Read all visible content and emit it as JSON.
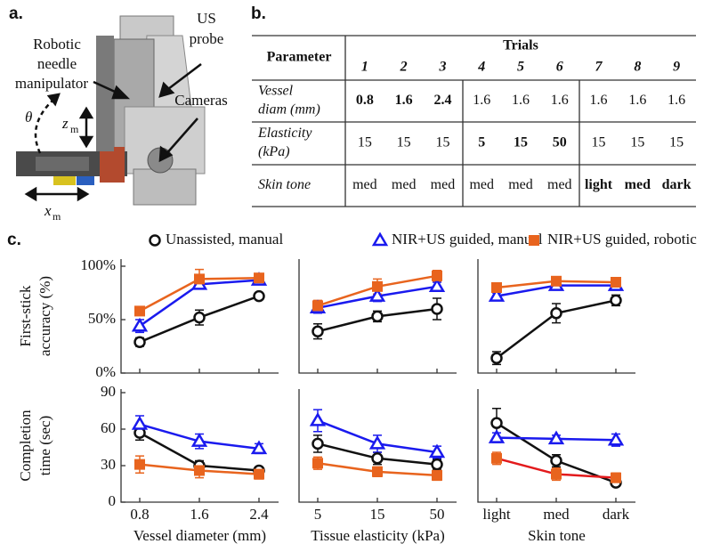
{
  "panel_a": {
    "label": "a.",
    "manipulator": [
      "Robotic",
      "needle",
      "manipulator"
    ],
    "probe": [
      "US",
      "probe"
    ],
    "cameras": "Cameras",
    "theta": "θ",
    "z": "z",
    "z_sub": "m",
    "x": "x",
    "x_sub": "m"
  },
  "panel_b": {
    "label": "b.",
    "table": {
      "header": "Parameter",
      "trials_label": "Trials",
      "columns": [
        "1",
        "2",
        "3",
        "4",
        "5",
        "6",
        "7",
        "8",
        "9"
      ],
      "rows": [
        {
          "label": [
            "Vessel",
            "diam (mm)"
          ],
          "cells": [
            0.8,
            1.6,
            2.4,
            1.6,
            1.6,
            1.6,
            1.6,
            1.6,
            1.6
          ],
          "highlight": [
            0,
            1,
            2
          ]
        },
        {
          "label": [
            "Elasticity",
            "(kPa)"
          ],
          "cells": [
            15,
            15,
            15,
            5,
            15,
            50,
            15,
            15,
            15
          ],
          "highlight": [
            3,
            4,
            5
          ]
        },
        {
          "label": [
            "Skin tone"
          ],
          "cells": [
            "med",
            "med",
            "med",
            "med",
            "med",
            "med",
            "light",
            "med",
            "dark"
          ],
          "highlight": [
            6,
            7,
            8
          ]
        }
      ],
      "highlight_color": "#1a1adb"
    }
  },
  "panel_c": {
    "label": "c."
  },
  "chart_data": [
    {
      "type": "line",
      "categories": [
        null,
        null,
        null
      ],
      "ylim": [
        0,
        100
      ],
      "yticks": [
        {
          "value": 0,
          "label": "0%"
        },
        {
          "value": 50,
          "label": "50%"
        },
        {
          "value": 100,
          "label": "100%"
        }
      ],
      "ylabel": [
        "First-stick",
        "accuracy (%)"
      ],
      "series": [
        {
          "name": "Unassisted, manual",
          "color": "#111111",
          "marker": "circle",
          "values": [
            29,
            52,
            72
          ],
          "errors": [
            4,
            7,
            3
          ]
        },
        {
          "name": "NIR+US guided, manual",
          "color": "#1a1aee",
          "marker": "triangle",
          "values": [
            44,
            83,
            87
          ],
          "errors": [
            6,
            4,
            4
          ]
        },
        {
          "name": "NIR+US guided, robotic",
          "color": "#e8641e",
          "marker": "square",
          "values": [
            58,
            88,
            89
          ],
          "errors": [
            4,
            9,
            4
          ]
        }
      ]
    },
    {
      "type": "line",
      "categories": [
        null,
        null,
        null
      ],
      "ylim": [
        0,
        100
      ],
      "series": [
        {
          "name": "Unassisted, manual",
          "color": "#111111",
          "marker": "circle",
          "values": [
            39,
            53,
            60
          ],
          "errors": [
            7,
            5,
            10
          ]
        },
        {
          "name": "NIR+US guided, manual",
          "color": "#1a1aee",
          "marker": "triangle",
          "values": [
            61,
            72,
            81
          ],
          "errors": [
            5,
            5,
            4
          ]
        },
        {
          "name": "NIR+US guided, robotic",
          "color": "#e8641e",
          "marker": "square",
          "values": [
            63,
            81,
            91
          ],
          "errors": [
            5,
            7,
            5
          ]
        }
      ]
    },
    {
      "type": "line",
      "categories": [
        null,
        null,
        null
      ],
      "ylim": [
        0,
        100
      ],
      "series": [
        {
          "name": "Unassisted, manual",
          "color": "#111111",
          "marker": "circle",
          "values": [
            14,
            56,
            68
          ],
          "errors": [
            6,
            9,
            5
          ]
        },
        {
          "name": "NIR+US guided, manual",
          "color": "#1a1aee",
          "marker": "triangle",
          "values": [
            72,
            82,
            82
          ],
          "errors": [
            3,
            4,
            4
          ]
        },
        {
          "name": "NIR+US guided, robotic",
          "color": "#e8641e",
          "marker": "square",
          "values": [
            80,
            86,
            85
          ],
          "errors": [
            4,
            4,
            4
          ]
        }
      ]
    },
    {
      "type": "line",
      "categories": [
        "0.8",
        "1.6",
        "2.4"
      ],
      "xlabel": "Vessel diameter (mm)",
      "ylim": [
        0,
        90
      ],
      "yticks": [
        0,
        30,
        60,
        90
      ],
      "ylabel": [
        "Completion",
        "time (sec)"
      ],
      "series": [
        {
          "name": "Unassisted, manual",
          "color": "#111111",
          "marker": "circle",
          "values": [
            57,
            30,
            26
          ],
          "errors": [
            6,
            4,
            3
          ]
        },
        {
          "name": "NIR+US guided, manual",
          "color": "#1a1aee",
          "marker": "triangle",
          "values": [
            64,
            50,
            44
          ],
          "errors": [
            7,
            6,
            4
          ]
        },
        {
          "name": "NIR+US guided, robotic",
          "color": "#e8641e",
          "marker": "square",
          "values": [
            31,
            26,
            23
          ],
          "errors": [
            7,
            6,
            4
          ]
        }
      ]
    },
    {
      "type": "line",
      "categories": [
        "5",
        "15",
        "50"
      ],
      "xlabel": "Tissue elasticity (kPa)",
      "ylim": [
        0,
        90
      ],
      "series": [
        {
          "name": "Unassisted, manual",
          "color": "#111111",
          "marker": "circle",
          "values": [
            48,
            36,
            31
          ],
          "errors": [
            7,
            5,
            4
          ]
        },
        {
          "name": "NIR+US guided, manual",
          "color": "#1a1aee",
          "marker": "triangle",
          "values": [
            67,
            48,
            41
          ],
          "errors": [
            9,
            7,
            5
          ]
        },
        {
          "name": "NIR+US guided, robotic",
          "color": "#e8641e",
          "marker": "square",
          "values": [
            32,
            25,
            22
          ],
          "errors": [
            5,
            4,
            4
          ]
        }
      ]
    },
    {
      "type": "line",
      "categories": [
        "light",
        "med",
        "dark"
      ],
      "xlabel": "Skin tone",
      "ylim": [
        0,
        90
      ],
      "series": [
        {
          "name": "Unassisted, manual",
          "color": "#111111",
          "marker": "circle",
          "values": [
            65,
            34,
            16
          ],
          "errors": [
            12,
            5,
            3
          ]
        },
        {
          "name": "NIR+US guided, manual",
          "color": "#1a1aee",
          "marker": "triangle",
          "values": [
            53,
            52,
            51
          ],
          "errors": [
            4,
            3,
            5
          ]
        },
        {
          "name": "NIR+US guided, robotic",
          "color": "#e8641e",
          "line_color": "#e31a1c",
          "marker": "square",
          "values": [
            36,
            23,
            20
          ],
          "errors": [
            5,
            5,
            4
          ]
        }
      ]
    }
  ]
}
